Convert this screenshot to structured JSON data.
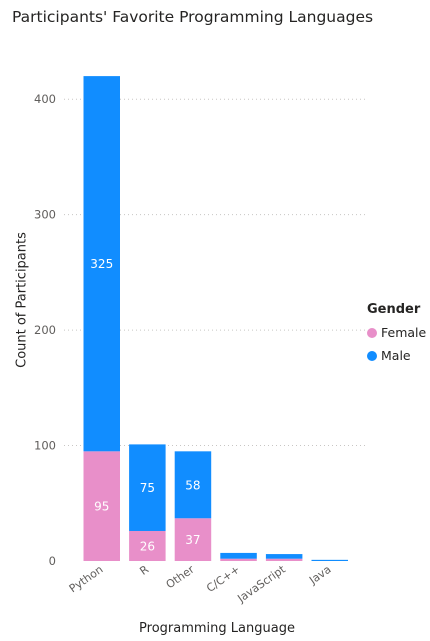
{
  "chart_data": {
    "type": "bar",
    "stacked": true,
    "title": "Participants' Favorite Programming Languages",
    "xlabel": "Programming Language",
    "ylabel": "Count of Participants",
    "categories": [
      "Python",
      "R",
      "Other",
      "C/C++",
      "JavaScript",
      "Java"
    ],
    "ylim": [
      0,
      420
    ],
    "yticks": [
      0,
      100,
      200,
      300,
      400
    ],
    "grid": true,
    "legend": {
      "title": "Gender",
      "position": "right"
    },
    "series": [
      {
        "name": "Female",
        "color": "#e88fc9",
        "values": [
          95,
          26,
          37,
          2,
          2,
          0
        ],
        "labels": [
          "95",
          "26",
          "37",
          "",
          "",
          ""
        ]
      },
      {
        "name": "Male",
        "color": "#118dff",
        "values": [
          325,
          75,
          58,
          5,
          4,
          1
        ],
        "labels": [
          "325",
          "75",
          "58",
          "",
          "",
          ""
        ]
      }
    ]
  }
}
